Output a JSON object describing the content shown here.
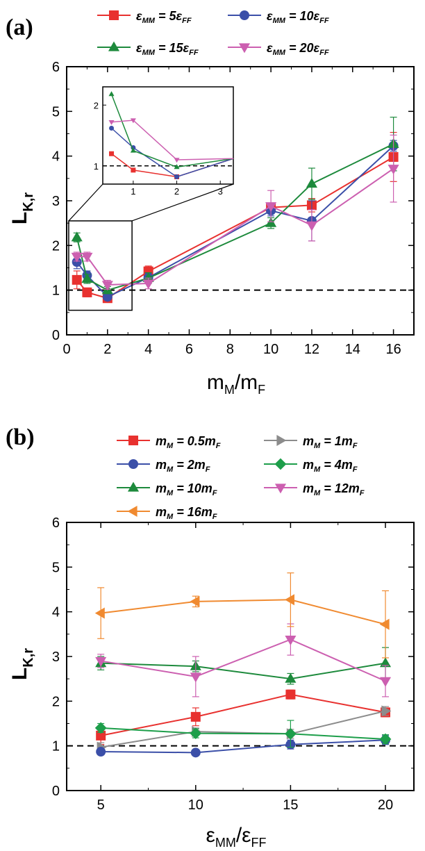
{
  "chart_data": [
    {
      "panel": "(a)",
      "type": "line",
      "xlabel": "m_M/m_F",
      "ylabel": "L_K,r",
      "xlim": [
        0,
        17
      ],
      "ylim": [
        0,
        6
      ],
      "xticks": [
        "0",
        "2",
        "4",
        "6",
        "8",
        "10",
        "12",
        "14",
        "16"
      ],
      "yticks": [
        "0",
        "1",
        "2",
        "3",
        "4",
        "5",
        "6"
      ],
      "reference_line": 1,
      "x": [
        0.5,
        1,
        2,
        4,
        10,
        12,
        16
      ],
      "series": [
        {
          "name": "ε_MM = 5ε_FF",
          "color": "#e8312f",
          "marker": "square",
          "values": [
            1.23,
            0.95,
            0.82,
            1.42,
            2.85,
            2.9,
            3.98
          ],
          "errors": [
            0.2,
            0.1,
            0.08,
            0.12,
            0.1,
            0.15,
            0.55
          ]
        },
        {
          "name": "ε_MM = 10ε_FF",
          "color": "#3b4fa8",
          "marker": "circle",
          "values": [
            1.63,
            1.33,
            0.85,
            1.28,
            2.78,
            2.55,
            4.23
          ],
          "errors": [
            0.15,
            0.1,
            0.05,
            0.1,
            0.12,
            0.45,
            0.12
          ]
        },
        {
          "name": "ε_MM = 15ε_FF",
          "color": "#1d8a3c",
          "marker": "triangle-up",
          "values": [
            2.18,
            1.25,
            1.0,
            1.27,
            2.5,
            3.38,
            4.27
          ],
          "errors": [
            0.1,
            0.1,
            0.08,
            0.12,
            0.12,
            0.35,
            0.6
          ]
        },
        {
          "name": "ε_MM = 20ε_FF",
          "color": "#cc5fb0",
          "marker": "triangle-down",
          "values": [
            1.75,
            1.75,
            1.12,
            1.15,
            2.88,
            2.45,
            3.72
          ],
          "errors": [
            0.1,
            0.1,
            0.1,
            0.12,
            0.35,
            0.35,
            0.75
          ]
        }
      ],
      "inset": {
        "xlim": [
          0.3,
          3.3
        ],
        "ylim": [
          0.7,
          2.3
        ],
        "xticks": [
          "1",
          "2",
          "3"
        ],
        "yticks": [
          "1",
          "2"
        ],
        "x": [
          0.5,
          1,
          2,
          3.3
        ],
        "values": [
          [
            1.2,
            0.93,
            0.82,
            1.12
          ],
          [
            1.62,
            1.3,
            0.82,
            1.12
          ],
          [
            2.18,
            1.25,
            0.98,
            1.12
          ],
          [
            1.72,
            1.75,
            1.1,
            1.12
          ]
        ]
      }
    },
    {
      "panel": "(b)",
      "type": "line",
      "xlabel": "ε_MM/ε_FF",
      "ylabel": "L_K,r",
      "xlim": [
        3.2,
        21.5
      ],
      "ylim": [
        0,
        6
      ],
      "xticks": [
        "5",
        "10",
        "15",
        "20"
      ],
      "yticks": [
        "0",
        "1",
        "2",
        "3",
        "4",
        "5",
        "6"
      ],
      "reference_line": 1,
      "x": [
        5,
        10,
        15,
        20
      ],
      "series": [
        {
          "name": "m_M = 0.5m_F",
          "color": "#e8312f",
          "marker": "square",
          "values": [
            1.23,
            1.65,
            2.15,
            1.75
          ],
          "errors": [
            0.2,
            0.2,
            0.1,
            0.1
          ]
        },
        {
          "name": "m_M = 1m_F",
          "color": "#8c8c8c",
          "marker": "triangle-right",
          "values": [
            0.97,
            1.32,
            1.27,
            1.78
          ],
          "errors": [
            0.1,
            0.08,
            0.1,
            0.1
          ]
        },
        {
          "name": "m_M = 2m_F",
          "color": "#3b4fa8",
          "marker": "circle",
          "values": [
            0.87,
            0.85,
            1.03,
            1.13
          ],
          "errors": [
            0.05,
            0.05,
            0.1,
            0.1
          ]
        },
        {
          "name": "m_M = 4m_F",
          "color": "#1d9e4a",
          "marker": "diamond",
          "values": [
            1.4,
            1.28,
            1.27,
            1.15
          ],
          "errors": [
            0.1,
            0.1,
            0.3,
            0.1
          ]
        },
        {
          "name": "m_M = 10m_F",
          "color": "#1d8a3c",
          "marker": "triangle-up",
          "values": [
            2.85,
            2.78,
            2.5,
            2.85
          ],
          "errors": [
            0.15,
            0.12,
            0.12,
            0.35
          ]
        },
        {
          "name": "m_M = 12m_F",
          "color": "#cc5fb0",
          "marker": "triangle-down",
          "values": [
            2.9,
            2.55,
            3.38,
            2.45
          ],
          "errors": [
            0.15,
            0.45,
            0.35,
            0.35
          ]
        },
        {
          "name": "m_M = 16m_F",
          "color": "#f08a30",
          "marker": "triangle-left",
          "values": [
            3.97,
            4.23,
            4.27,
            3.72
          ],
          "errors": [
            0.57,
            0.12,
            0.6,
            0.75
          ]
        }
      ]
    }
  ],
  "panel_a_label": "(a)",
  "panel_b_label": "(b)"
}
